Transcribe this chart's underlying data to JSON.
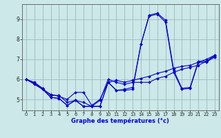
{
  "title": "",
  "xlabel": "Graphe des températures (°c)",
  "ylabel": "",
  "background_color": "#cce8e8",
  "line_color": "#0000cc",
  "grid_color": "#99bbbb",
  "xlim": [
    -0.5,
    23.5
  ],
  "ylim": [
    4.45,
    9.75
  ],
  "xticks": [
    0,
    1,
    2,
    3,
    4,
    5,
    6,
    7,
    8,
    9,
    10,
    11,
    12,
    13,
    14,
    15,
    16,
    17,
    18,
    19,
    20,
    21,
    22,
    23
  ],
  "yticks": [
    5,
    6,
    7,
    8,
    9
  ],
  "series": [
    {
      "x": [
        0,
        1,
        2,
        3,
        4,
        5,
        6,
        7,
        8,
        9,
        10,
        11,
        12,
        13,
        14,
        15,
        16,
        17,
        18,
        19,
        20,
        21,
        22,
        23
      ],
      "y": [
        6.0,
        5.85,
        5.55,
        5.2,
        5.2,
        4.85,
        4.95,
        4.85,
        4.65,
        4.95,
        6.0,
        5.85,
        5.75,
        5.85,
        5.85,
        5.85,
        6.05,
        6.15,
        6.35,
        6.5,
        6.6,
        6.7,
        6.9,
        7.1
      ]
    },
    {
      "x": [
        0,
        1,
        2,
        3,
        4,
        5,
        6,
        7,
        8,
        9,
        10,
        11,
        12,
        13,
        14,
        15,
        16,
        17,
        18,
        19,
        20,
        21,
        22,
        23
      ],
      "y": [
        6.0,
        5.8,
        5.5,
        5.25,
        5.15,
        5.0,
        5.35,
        5.35,
        4.7,
        5.0,
        5.85,
        5.95,
        5.85,
        5.95,
        6.05,
        6.15,
        6.3,
        6.4,
        6.55,
        6.65,
        6.7,
        6.85,
        7.0,
        7.2
      ]
    },
    {
      "x": [
        0,
        1,
        2,
        3,
        4,
        5,
        6,
        7,
        8,
        9,
        10,
        11,
        12,
        13,
        14,
        15,
        16,
        17,
        18,
        19,
        20,
        21,
        22,
        23
      ],
      "y": [
        6.0,
        5.8,
        5.55,
        5.1,
        5.05,
        4.7,
        4.95,
        4.65,
        4.65,
        4.65,
        5.85,
        5.45,
        5.45,
        5.5,
        7.75,
        9.2,
        9.3,
        8.95,
        6.45,
        5.55,
        5.6,
        6.9,
        6.9,
        7.2
      ]
    },
    {
      "x": [
        0,
        1,
        2,
        3,
        4,
        5,
        6,
        7,
        8,
        9,
        10,
        11,
        12,
        13,
        14,
        15,
        16,
        17,
        18,
        19,
        20,
        21,
        22,
        23
      ],
      "y": [
        6.0,
        5.75,
        5.5,
        5.1,
        5.05,
        4.7,
        4.95,
        4.65,
        4.65,
        4.65,
        5.85,
        5.45,
        5.5,
        5.6,
        7.75,
        9.15,
        9.25,
        8.85,
        6.35,
        5.5,
        5.55,
        6.85,
        6.85,
        7.15
      ]
    }
  ]
}
